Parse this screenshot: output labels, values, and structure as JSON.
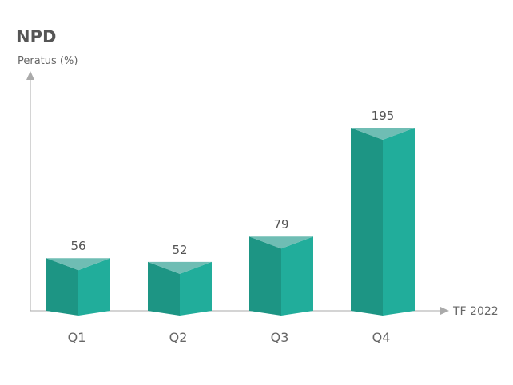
{
  "chart_data": {
    "type": "bar",
    "title": "NPD",
    "ylabel": "Peratus (%)",
    "xlabel": "TF 2022",
    "categories": [
      "Q1",
      "Q2",
      "Q3",
      "Q4"
    ],
    "values": [
      56,
      52,
      79,
      195
    ],
    "value_labels": [
      "56",
      "52",
      "79",
      "195"
    ],
    "ylim": [
      0,
      195
    ],
    "grid": false,
    "legend": "none",
    "bar_style": "3d-prism",
    "colors": {
      "bar_left_face": "#1d9584",
      "bar_right_face": "#21ad9b",
      "bar_top_face": "#6fbdb4",
      "axis": "#aaaaaa",
      "title": "#555555",
      "text": "#666666"
    }
  }
}
